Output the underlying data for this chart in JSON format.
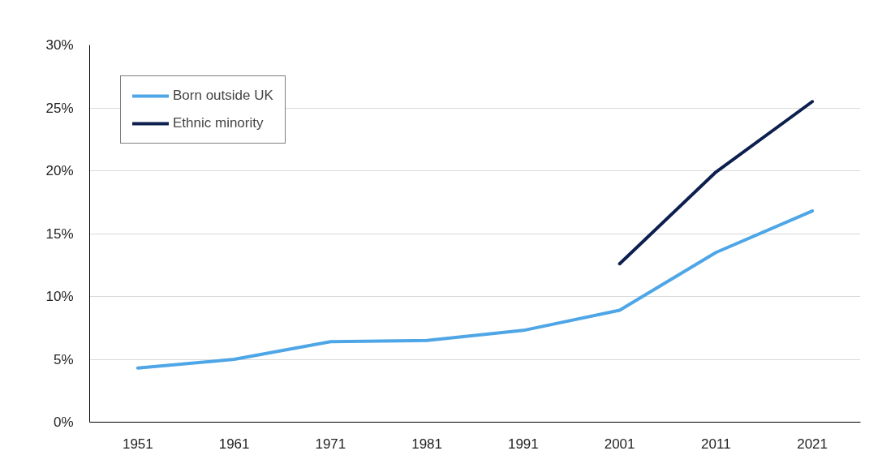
{
  "chart_data": {
    "type": "line",
    "categories": [
      "1951",
      "1961",
      "1971",
      "1981",
      "1991",
      "2001",
      "2011",
      "2021"
    ],
    "series": [
      {
        "name": "Born outside UK",
        "color": "#4ea6e6",
        "values": [
          4.3,
          5.0,
          6.4,
          6.5,
          7.3,
          8.9,
          13.5,
          16.8
        ]
      },
      {
        "name": "Ethnic minority",
        "color": "#0d1f4f",
        "values": [
          null,
          null,
          null,
          null,
          null,
          12.6,
          19.9,
          25.5
        ]
      }
    ],
    "ylim": [
      0,
      30
    ],
    "yticks": [
      {
        "value": 0,
        "label": "0%"
      },
      {
        "value": 5,
        "label": "5%"
      },
      {
        "value": 10,
        "label": "10%"
      },
      {
        "value": 15,
        "label": "15%"
      },
      {
        "value": 20,
        "label": "20%"
      },
      {
        "value": 25,
        "label": "25%"
      },
      {
        "value": 30,
        "label": "30%"
      }
    ],
    "grid": "y",
    "legend": "top left",
    "marker": "none",
    "line_style": "solid"
  }
}
